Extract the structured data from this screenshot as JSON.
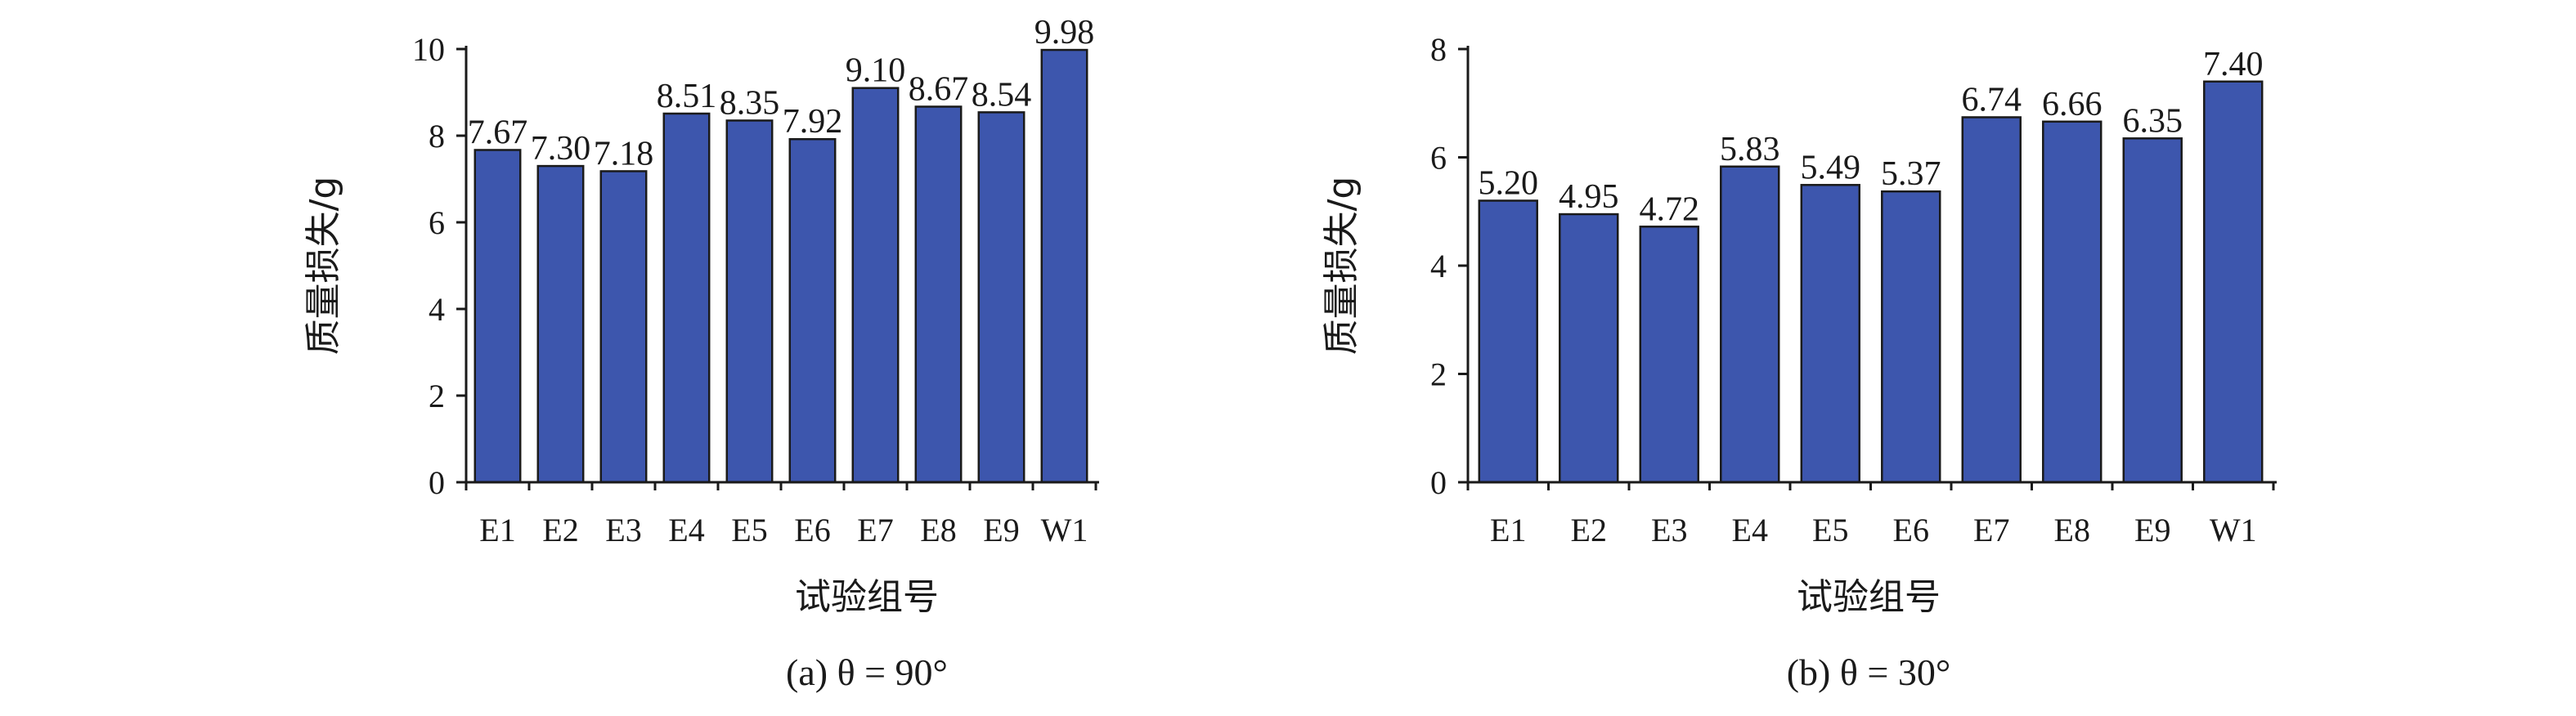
{
  "chart_data": [
    {
      "type": "bar",
      "categories": [
        "E1",
        "E2",
        "E3",
        "E4",
        "E5",
        "E6",
        "E7",
        "E8",
        "E9",
        "W1"
      ],
      "values": [
        7.67,
        7.3,
        7.18,
        8.51,
        8.35,
        7.92,
        9.1,
        8.67,
        8.54,
        9.98
      ],
      "value_labels": [
        "7.67",
        "7.30",
        "7.18",
        "8.51",
        "8.35",
        "7.92",
        "9.10",
        "8.67",
        "8.54",
        "9.98"
      ],
      "ylim": [
        0,
        10
      ],
      "yticks": [
        0,
        2,
        4,
        6,
        8,
        10
      ],
      "ylabel": "质量损失/g",
      "xlabel": "试验组号",
      "caption": "(a) θ = 90°",
      "bar_color": "#3d56ad",
      "grid": false,
      "legend": "none"
    },
    {
      "type": "bar",
      "categories": [
        "E1",
        "E2",
        "E3",
        "E4",
        "E5",
        "E6",
        "E7",
        "E8",
        "E9",
        "W1"
      ],
      "values": [
        5.2,
        4.95,
        4.72,
        5.83,
        5.49,
        5.37,
        6.74,
        6.66,
        6.35,
        7.4
      ],
      "value_labels": [
        "5.20",
        "4.95",
        "4.72",
        "5.83",
        "5.49",
        "5.37",
        "6.74",
        "6.66",
        "6.35",
        "7.40"
      ],
      "ylim": [
        0,
        8
      ],
      "yticks": [
        0,
        2,
        4,
        6,
        8
      ],
      "ylabel": "质量损失/g",
      "xlabel": "试验组号",
      "caption": "(b) θ = 30°",
      "bar_color": "#3d56ad",
      "grid": false,
      "legend": "none"
    }
  ]
}
